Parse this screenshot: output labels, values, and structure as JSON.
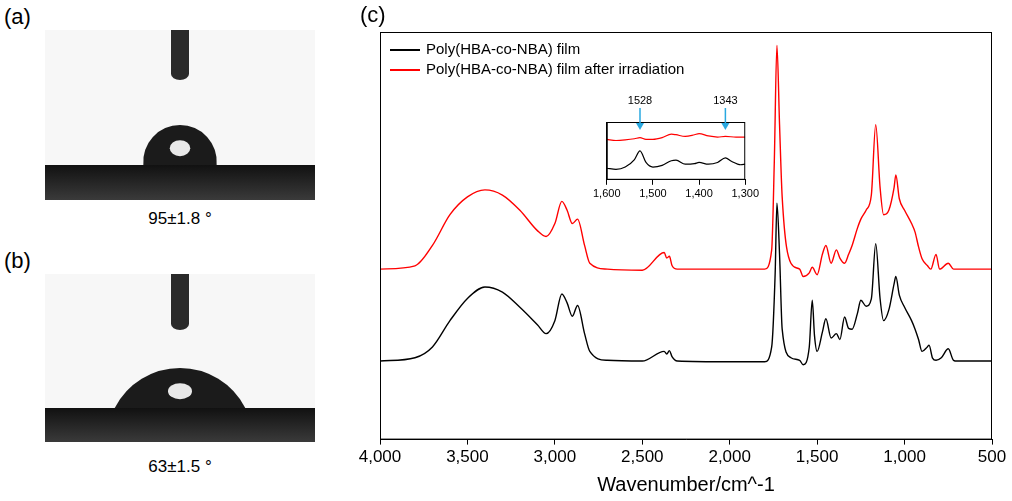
{
  "panels": [
    {
      "label": "(a)",
      "caption": "95±1.8 °",
      "contact_angle": 95
    },
    {
      "label": "(b)",
      "caption": "63±1.5 °",
      "contact_angle": 63
    }
  ],
  "chart_data": [
    {
      "type": "line",
      "panel_label": "(c)",
      "x_label": "Wavenumber/cm^-1",
      "xlim": [
        4000,
        500
      ],
      "xticks": [
        4000,
        3500,
        3000,
        2500,
        2000,
        1500,
        1000,
        500
      ],
      "ylim": [
        0,
        110
      ],
      "tick_labels": "x",
      "legend": "upper left",
      "series": [
        {
          "name": "Poly(HBA-co-NBA) film",
          "color": "#000000",
          "x": [
            4000,
            3800,
            3700,
            3600,
            3500,
            3400,
            3300,
            3200,
            3100,
            3050,
            3000,
            2960,
            2930,
            2900,
            2870,
            2830,
            2800,
            2700,
            2500,
            2375,
            2360,
            2345,
            2330,
            2300,
            2000,
            1800,
            1760,
            1740,
            1730,
            1715,
            1700,
            1650,
            1600,
            1580,
            1545,
            1528,
            1515,
            1500,
            1470,
            1450,
            1420,
            1390,
            1370,
            1343,
            1320,
            1300,
            1270,
            1250,
            1220,
            1190,
            1165,
            1140,
            1120,
            1090,
            1060,
            1050,
            1030,
            1000,
            960,
            940,
            920,
            900,
            870,
            860,
            840,
            820,
            790,
            750,
            720,
            700,
            600,
            500
          ],
          "values": [
            21.2,
            22.1,
            25.0,
            32.1,
            38.1,
            41.2,
            39.8,
            35.7,
            31.0,
            28.6,
            32.1,
            39.3,
            36.9,
            33.3,
            36.2,
            28.6,
            23.8,
            21.4,
            21.2,
            23.8,
            23.1,
            24.0,
            22.4,
            21.2,
            21.0,
            21.0,
            25.0,
            45.0,
            63.8,
            50.0,
            29.8,
            22.1,
            21.4,
            20.2,
            25.0,
            37.6,
            28.0,
            23.8,
            29.0,
            32.6,
            27.4,
            28.6,
            27.0,
            33.1,
            30.0,
            29.8,
            34.0,
            37.6,
            36.0,
            38.0,
            52.9,
            38.0,
            32.1,
            35.0,
            42.0,
            44.0,
            39.0,
            35.7,
            32.1,
            29.8,
            27.0,
            23.8,
            25.0,
            25.5,
            22.0,
            21.4,
            22.1,
            24.5,
            21.4,
            21.2,
            21.2,
            21.2
          ]
        },
        {
          "name": "Poly(HBA-co-NBA) film after irradiation",
          "color": "#ff0000",
          "x": [
            4000,
            3800,
            3700,
            3600,
            3500,
            3400,
            3300,
            3200,
            3100,
            3050,
            3000,
            2960,
            2930,
            2900,
            2870,
            2830,
            2800,
            2700,
            2500,
            2375,
            2360,
            2345,
            2330,
            2300,
            2000,
            1800,
            1760,
            1745,
            1730,
            1715,
            1700,
            1650,
            1600,
            1580,
            1545,
            1528,
            1500,
            1470,
            1450,
            1420,
            1390,
            1370,
            1343,
            1320,
            1300,
            1270,
            1250,
            1220,
            1190,
            1165,
            1140,
            1120,
            1090,
            1060,
            1050,
            1030,
            1000,
            960,
            940,
            920,
            900,
            870,
            850,
            820,
            800,
            750,
            720,
            700,
            600,
            500
          ],
          "values": [
            46.0,
            46.9,
            52.4,
            60.7,
            65.5,
            67.4,
            66.0,
            61.9,
            56.4,
            54.8,
            58.3,
            64.3,
            61.9,
            58.3,
            59.5,
            52.4,
            47.6,
            46.0,
            45.7,
            50.5,
            49.0,
            49.5,
            47.0,
            46.0,
            46.0,
            46.0,
            51.2,
            75.0,
            106.4,
            85.0,
            65.5,
            47.6,
            46.0,
            44.0,
            45.0,
            46.5,
            44.5,
            50.0,
            52.4,
            47.6,
            51.2,
            49.0,
            47.6,
            50.0,
            52.4,
            57.0,
            59.5,
            61.9,
            66.0,
            85.0,
            68.0,
            60.7,
            61.9,
            68.0,
            71.4,
            65.0,
            61.9,
            58.3,
            56.0,
            52.0,
            48.8,
            47.0,
            46.0,
            50.0,
            46.0,
            47.6,
            46.0,
            46.0,
            46.0,
            46.0
          ]
        }
      ]
    },
    {
      "type": "line",
      "xlim": [
        1600,
        1300
      ],
      "xticks": [
        1600,
        1500,
        1400,
        1300
      ],
      "ylim": [
        0,
        100
      ],
      "tick_labels": "x",
      "annotations": [
        {
          "x": 1528,
          "label": "1528"
        },
        {
          "x": 1343,
          "label": "1343"
        }
      ],
      "series": [
        {
          "color": "#ff0000",
          "x": [
            1600,
            1580,
            1560,
            1540,
            1528,
            1515,
            1500,
            1480,
            1460,
            1450,
            1430,
            1410,
            1400,
            1380,
            1360,
            1343,
            1320,
            1300
          ],
          "values": [
            70,
            68,
            69,
            71,
            73,
            70,
            70,
            73,
            79,
            78,
            75,
            78,
            80,
            76,
            74,
            75,
            74,
            74
          ]
        },
        {
          "color": "#000000",
          "x": [
            1600,
            1580,
            1560,
            1540,
            1528,
            1515,
            1500,
            1480,
            1460,
            1450,
            1430,
            1410,
            1400,
            1380,
            1360,
            1343,
            1330,
            1310,
            1300
          ],
          "values": [
            20,
            18,
            22,
            35,
            50,
            30,
            22,
            25,
            33,
            34,
            27,
            28,
            30,
            27,
            30,
            38,
            32,
            26,
            27
          ]
        }
      ]
    }
  ]
}
